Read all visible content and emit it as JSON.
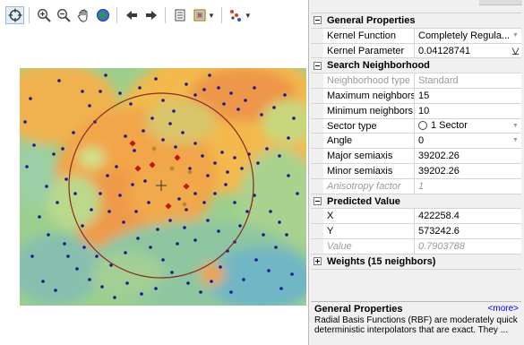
{
  "properties": {
    "categories": {
      "general": "General Properties",
      "search": "Search Neighborhood",
      "predicted": "Predicted Value",
      "weights": "Weights (15 neighbors)"
    },
    "general_rows": [
      {
        "name": "Kernel Function",
        "value": "Completely Regula..."
      },
      {
        "name": "Kernel Parameter",
        "value": "0.04128741"
      }
    ],
    "search_rows": [
      {
        "name": "Neighborhood type",
        "value": "Standard"
      },
      {
        "name": "Maximum neighbors",
        "value": "15"
      },
      {
        "name": "Minimum neighbors",
        "value": "10"
      },
      {
        "name": "Sector type",
        "value": "1 Sector"
      },
      {
        "name": "Angle",
        "value": "0"
      },
      {
        "name": "Major semiaxis",
        "value": "39202.26"
      },
      {
        "name": "Minor semiaxis",
        "value": "39202.26"
      },
      {
        "name": "Anisotropy factor",
        "value": "1"
      }
    ],
    "predicted_rows": [
      {
        "name": "X",
        "value": "422258.4"
      },
      {
        "name": "Y",
        "value": "573242.6"
      },
      {
        "name": "Value",
        "value": "0.7903788"
      }
    ]
  },
  "description": {
    "title": "General Properties",
    "more": "<more>",
    "text": "Radial Basis Functions (RBF) are moderately quick deterministic interpolators that are exact. They ..."
  },
  "toolbar": {
    "icons": [
      "target-icon",
      "zoom-in-icon",
      "zoom-out-icon",
      "pan-icon",
      "full-extent-icon",
      "back-icon",
      "forward-icon",
      "table-icon",
      "layers-icon",
      "points-icon"
    ]
  },
  "colors": {
    "point": "#1a1a8c",
    "neighbor": "#c0140a",
    "circle": "#8b2a1e"
  }
}
